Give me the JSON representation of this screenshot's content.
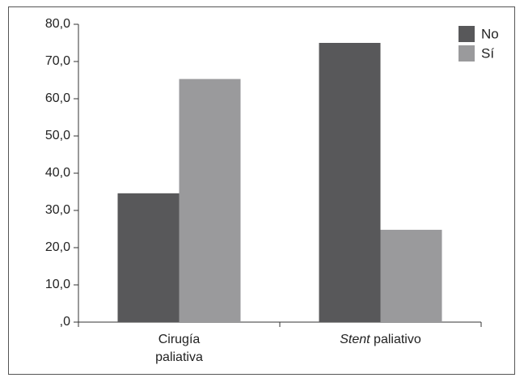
{
  "chart_data": {
    "type": "bar",
    "categories": [
      "Cirugía paliativa",
      "Stent paliativo"
    ],
    "series": [
      {
        "name": "No",
        "color": "#58585a",
        "values": [
          34.6,
          75.0
        ]
      },
      {
        "name": "Sí",
        "color": "#9a9a9c",
        "values": [
          65.3,
          24.8
        ]
      }
    ],
    "ylim": [
      0,
      80
    ],
    "yticks": [
      {
        "value": 0,
        "label": ",0"
      },
      {
        "value": 10,
        "label": "10,0"
      },
      {
        "value": 20,
        "label": "20,0"
      },
      {
        "value": 30,
        "label": "30,0"
      },
      {
        "value": 40,
        "label": "40,0"
      },
      {
        "value": 50,
        "label": "50,0"
      },
      {
        "value": 60,
        "label": "60,0"
      },
      {
        "value": 70,
        "label": "70,0"
      },
      {
        "value": 80,
        "label": "80,0"
      }
    ],
    "legend": "top-right"
  }
}
